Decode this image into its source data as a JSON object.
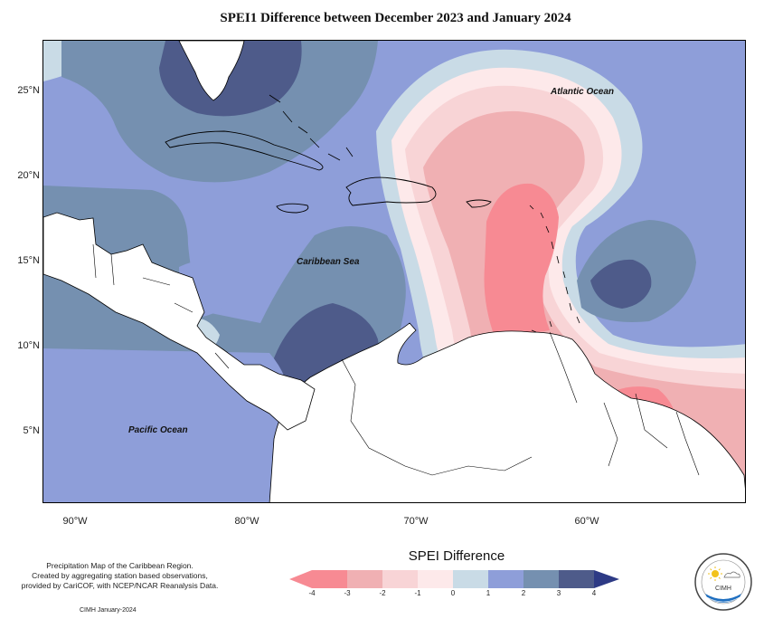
{
  "title": "SPEI1 Difference between December 2023 and January 2024",
  "map": {
    "lat_labels": [
      "25°N",
      "20°N",
      "15°N",
      "10°N",
      "5°N"
    ],
    "lon_labels": [
      "90°W",
      "80°W",
      "70°W",
      "60°W"
    ],
    "places": {
      "atlantic": "Atlantic Ocean",
      "caribbean": "Caribbean Sea",
      "pacific": "Pacific Ocean"
    }
  },
  "legend": {
    "title": "SPEI Difference",
    "ticks": [
      "-4",
      "-3",
      "-2",
      "-1",
      "0",
      "1",
      "2",
      "3",
      "4"
    ],
    "colors": [
      "#f78a93",
      "#f0b0b3",
      "#f8d4d6",
      "#fde9ea",
      "#c9dbe6",
      "#8e9ed9",
      "#7590b0",
      "#4e5b8a",
      "#2d3a85"
    ]
  },
  "credit": {
    "line1": "Precipitation Map of the Caribbean Region.",
    "line2": "Created by aggregating station based observations,",
    "line3": "provided by CariCOF, with NCEP/NCAR Reanalysis Data.",
    "date": "CIMH January-2024"
  },
  "logo": {
    "name": "CIMH"
  }
}
